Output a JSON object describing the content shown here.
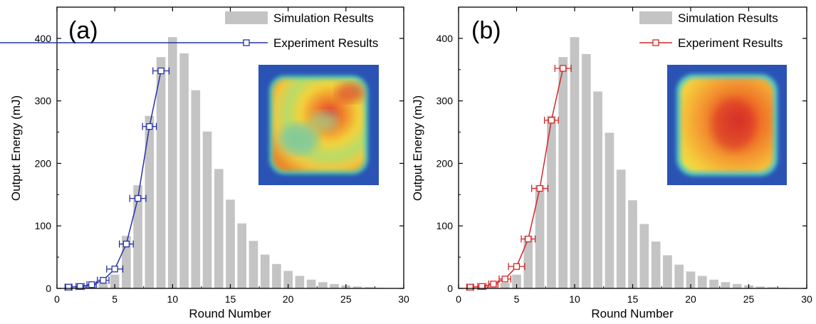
{
  "chart_data": [
    {
      "type": "bar",
      "panel_label": "(a)",
      "xlabel": "Round Number",
      "ylabel": "Output Energy (mJ)",
      "xlim": [
        0,
        30
      ],
      "ylim": [
        0,
        450
      ],
      "xticks": [
        0,
        5,
        10,
        15,
        20,
        25,
        30
      ],
      "yticks": [
        0,
        100,
        200,
        300,
        400
      ],
      "legend_position": "top-right",
      "inset": "beam profile heat map",
      "series": [
        {
          "name": "Simulation Results",
          "kind": "bar",
          "color": "#c4c4c4",
          "x": [
            1,
            2,
            3,
            4,
            5,
            6,
            7,
            8,
            9,
            10,
            11,
            12,
            13,
            14,
            15,
            16,
            17,
            18,
            19,
            20,
            21,
            22,
            23,
            24,
            25,
            26,
            27,
            28
          ],
          "values": [
            1,
            2,
            4,
            9,
            22,
            84,
            165,
            276,
            370,
            402,
            376,
            317,
            251,
            191,
            142,
            104,
            76,
            54,
            39,
            28,
            20,
            14,
            10,
            7,
            5,
            3,
            2,
            1
          ]
        },
        {
          "name": "Experiment Results",
          "kind": "line",
          "color": "#2631a6",
          "x": [
            1,
            2,
            3,
            4,
            5,
            6,
            7,
            8,
            9
          ],
          "values": [
            2,
            3,
            6,
            13,
            31,
            71,
            144,
            259,
            348
          ],
          "x_error": [
            0.3,
            0.35,
            0.4,
            0.5,
            0.7,
            0.6,
            0.7,
            0.6,
            0.7
          ]
        }
      ]
    },
    {
      "type": "bar",
      "panel_label": "(b)",
      "xlabel": "Round Number",
      "ylabel": "Output Energy (mJ)",
      "xlim": [
        0,
        30
      ],
      "ylim": [
        0,
        450
      ],
      "xticks": [
        0,
        5,
        10,
        15,
        20,
        25,
        30
      ],
      "yticks": [
        0,
        100,
        200,
        300,
        400
      ],
      "legend_position": "top-right",
      "inset": "beam profile heat map",
      "series": [
        {
          "name": "Simulation Results",
          "kind": "bar",
          "color": "#c4c4c4",
          "x": [
            1,
            2,
            3,
            4,
            5,
            6,
            7,
            8,
            9,
            10,
            11,
            12,
            13,
            14,
            15,
            16,
            17,
            18,
            19,
            20,
            21,
            22,
            23,
            24,
            25,
            26,
            27,
            28
          ],
          "values": [
            1,
            2,
            4,
            9,
            22,
            84,
            165,
            276,
            370,
            402,
            375,
            315,
            249,
            190,
            141,
            103,
            75,
            53,
            38,
            27,
            20,
            14,
            10,
            7,
            5,
            3,
            2,
            1
          ]
        },
        {
          "name": "Experiment Results",
          "kind": "line",
          "color": "#d42626",
          "x": [
            1,
            2,
            3,
            4,
            5,
            6,
            7,
            8,
            9
          ],
          "values": [
            2,
            3,
            7,
            15,
            35,
            79,
            160,
            269,
            352
          ],
          "x_error": [
            0.3,
            0.35,
            0.4,
            0.5,
            0.7,
            0.6,
            0.7,
            0.6,
            0.7
          ]
        }
      ]
    }
  ]
}
